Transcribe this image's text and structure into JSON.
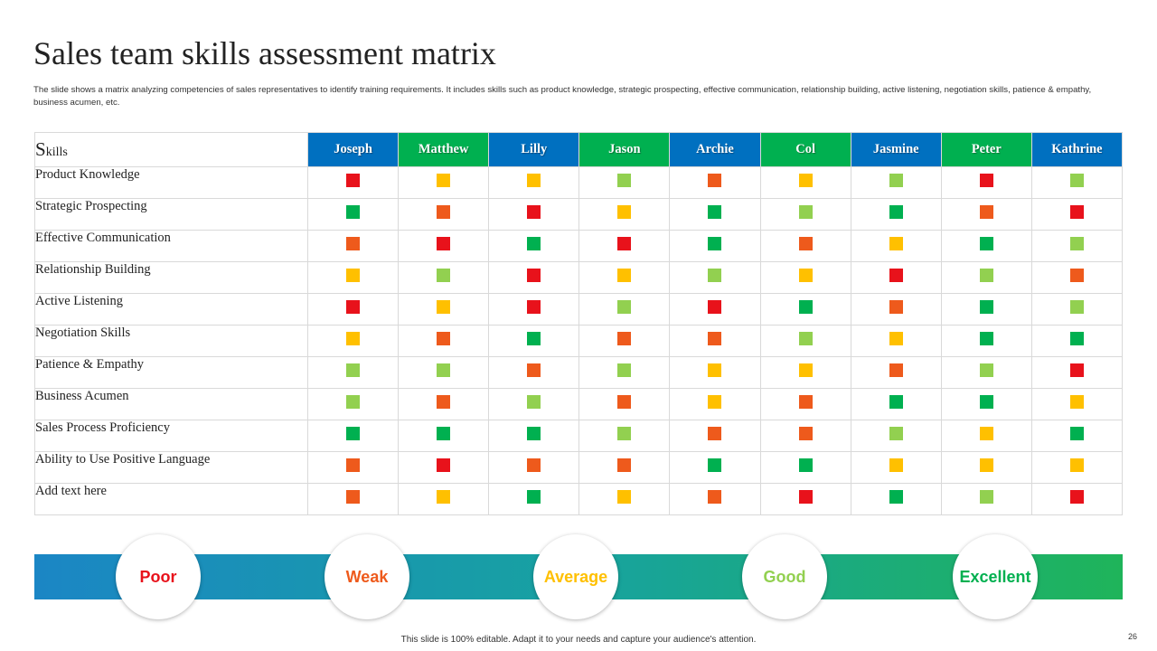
{
  "slide": {
    "title": "Sales team skills assessment matrix",
    "description": "The slide shows a matrix analyzing competencies of sales representatives to identify training requirements. It includes skills such as product knowledge, strategic prospecting, effective communication, relationship building, active listening, negotiation skills, patience & empathy, business acumen, etc.",
    "footer": "This slide is 100% editable. Adapt it to your needs and capture your audience's attention.",
    "page_number": "26"
  },
  "matrix": {
    "header_first": "S",
    "header_rest": "kills",
    "people": [
      {
        "name": "Joseph",
        "color": "#0070c0"
      },
      {
        "name": "Matthew",
        "color": "#00b050"
      },
      {
        "name": "Lilly",
        "color": "#0070c0"
      },
      {
        "name": "Jason",
        "color": "#00b050"
      },
      {
        "name": "Archie",
        "color": "#0070c0"
      },
      {
        "name": "Col",
        "color": "#00b050"
      },
      {
        "name": "Jasmine",
        "color": "#0070c0"
      },
      {
        "name": "Peter",
        "color": "#00b050"
      },
      {
        "name": "Kathrine",
        "color": "#0070c0"
      }
    ],
    "rows": [
      {
        "skill": "Product Knowledge",
        "ratings": [
          "Poor",
          "Average",
          "Average",
          "Good",
          "Weak",
          "Average",
          "Good",
          "Poor",
          "Good"
        ]
      },
      {
        "skill": "Strategic Prospecting",
        "ratings": [
          "Excellent",
          "Weak",
          "Poor",
          "Average",
          "Excellent",
          "Good",
          "Excellent",
          "Weak",
          "Poor"
        ]
      },
      {
        "skill": "Effective Communication",
        "ratings": [
          "Weak",
          "Poor",
          "Excellent",
          "Poor",
          "Excellent",
          "Weak",
          "Average",
          "Excellent",
          "Good"
        ]
      },
      {
        "skill": "Relationship Building",
        "ratings": [
          "Average",
          "Good",
          "Poor",
          "Average",
          "Good",
          "Average",
          "Poor",
          "Good",
          "Weak"
        ]
      },
      {
        "skill": "Active Listening",
        "ratings": [
          "Poor",
          "Average",
          "Poor",
          "Good",
          "Poor",
          "Excellent",
          "Weak",
          "Excellent",
          "Good"
        ]
      },
      {
        "skill": "Negotiation Skills",
        "ratings": [
          "Average",
          "Weak",
          "Excellent",
          "Weak",
          "Weak",
          "Good",
          "Average",
          "Excellent",
          "Excellent"
        ]
      },
      {
        "skill": "Patience & Empathy",
        "ratings": [
          "Good",
          "Good",
          "Weak",
          "Good",
          "Average",
          "Average",
          "Weak",
          "Good",
          "Poor"
        ]
      },
      {
        "skill": "Business Acumen",
        "ratings": [
          "Good",
          "Weak",
          "Good",
          "Weak",
          "Average",
          "Weak",
          "Excellent",
          "Excellent",
          "Average"
        ]
      },
      {
        "skill": "Sales Process Proficiency",
        "ratings": [
          "Excellent",
          "Excellent",
          "Excellent",
          "Good",
          "Weak",
          "Weak",
          "Good",
          "Average",
          "Excellent"
        ]
      },
      {
        "skill": "Ability to Use Positive Language",
        "ratings": [
          "Weak",
          "Poor",
          "Weak",
          "Weak",
          "Excellent",
          "Excellent",
          "Average",
          "Average",
          "Average"
        ]
      },
      {
        "skill": "Add text here",
        "ratings": [
          "Weak",
          "Average",
          "Excellent",
          "Average",
          "Weak",
          "Poor",
          "Excellent",
          "Good",
          "Poor"
        ]
      }
    ]
  },
  "legend": [
    {
      "label": "Poor",
      "color": "#e8121b"
    },
    {
      "label": "Weak",
      "color": "#ee5a1c"
    },
    {
      "label": "Average",
      "color": "#ffc000"
    },
    {
      "label": "Good",
      "color": "#92d050"
    },
    {
      "label": "Excellent",
      "color": "#00b050"
    }
  ]
}
